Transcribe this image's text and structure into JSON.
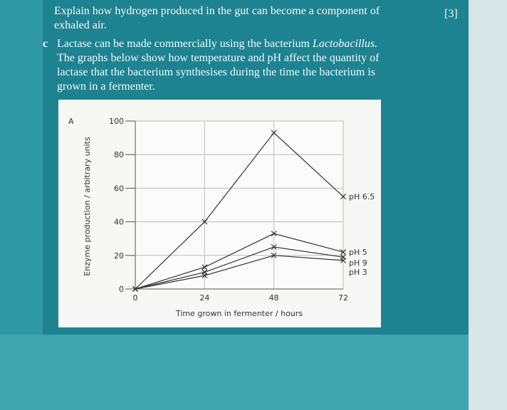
{
  "question": {
    "prev_lines": [
      "Explain how hydrogen produced in the gut can become a component of",
      "exhaled air."
    ],
    "marks": "[3]",
    "part": "c",
    "first_line": "Lactase can be made commercially using the bacterium",
    "species": "Lactobacillus.",
    "lines": [
      "The graphs below show how temperature and pH affect the quantity of",
      "lactase that the bacterium synthesises during the time the bacterium is",
      "grown in a fermenter."
    ]
  },
  "chart_data": {
    "type": "line",
    "panel_label": "A",
    "x_label": "Time grown in fermenter / hours",
    "y_label": "Enzyme production / arbitrary units",
    "x": [
      0,
      24,
      48,
      72
    ],
    "series": [
      {
        "name": "pH 6.5",
        "color": "#333333",
        "values": [
          0,
          40,
          93,
          55
        ]
      },
      {
        "name": "pH 5",
        "color": "#333333",
        "values": [
          0,
          13,
          33,
          22
        ]
      },
      {
        "name": "pH 9",
        "color": "#333333",
        "values": [
          0,
          10,
          25,
          19
        ]
      },
      {
        "name": "pH 3",
        "color": "#333333",
        "values": [
          0,
          8,
          20,
          17
        ]
      }
    ],
    "xlim": [
      0,
      72
    ],
    "xticks": [
      0,
      24,
      48,
      72
    ],
    "ylim": [
      0,
      100
    ],
    "yticks": [
      0,
      20,
      40,
      60,
      80,
      100
    ],
    "grid": true
  }
}
